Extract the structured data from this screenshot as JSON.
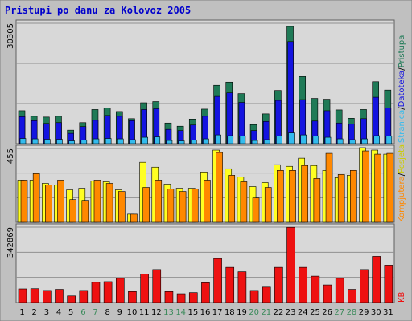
{
  "title": "Pristupi po danu za Kolovoz 2005",
  "colors": {
    "background": "#c0c0c0",
    "plot_bg": "#d8d8d8",
    "title": "#0000cc",
    "pristupa": "#1f7a57",
    "datoteka": "#1414e0",
    "stranica": "#33bbee",
    "kompjutera": "#ffff22",
    "posjeta": "#ff8800",
    "kb": "#ee1111",
    "weekend_tick": "#3a8a5a"
  },
  "right_labels": {
    "pristupa": "Pristupa",
    "datoteka": "Datoteka",
    "stranica": "Stranica",
    "kompjutera": "Kompjutera",
    "posjeta": "Posjeta",
    "kb": "KB",
    "sep": "/"
  },
  "chart_data": {
    "type": "bar",
    "categories": [
      "1",
      "2",
      "3",
      "4",
      "5",
      "6",
      "7",
      "8",
      "9",
      "10",
      "11",
      "12",
      "13",
      "14",
      "15",
      "16",
      "17",
      "18",
      "19",
      "20",
      "21",
      "22",
      "23",
      "24",
      "25",
      "26",
      "27",
      "28",
      "29",
      "30",
      "31"
    ],
    "weekend_days": [
      "6",
      "7",
      "13",
      "14",
      "20",
      "21",
      "27",
      "28"
    ],
    "panels": [
      {
        "ylabel": "30305",
        "ymax": 30305,
        "series": [
          {
            "name": "Pristupa",
            "values": [
              8300,
              6900,
              6700,
              6900,
              3400,
              5300,
              8600,
              9000,
              8100,
              6300,
              10300,
              10600,
              5200,
              4400,
              6200,
              8700,
              14700,
              15500,
              12600,
              4800,
              7500,
              13400,
              29500,
              16900,
              11400,
              11200,
              8500,
              6400,
              8600,
              15600,
              13500
            ]
          },
          {
            "name": "Datoteka",
            "values": [
              6800,
              5800,
              5100,
              5300,
              2600,
              4300,
              5900,
              7100,
              6900,
              5800,
              8600,
              8800,
              3600,
              3300,
              4700,
              6900,
              11900,
              12800,
              10400,
              3300,
              5600,
              10900,
              25700,
              11100,
              5700,
              8300,
              5200,
              4900,
              6300,
              11700,
              9000
            ]
          },
          {
            "name": "Stranica",
            "values": [
              1300,
              1200,
              1100,
              1100,
              700,
              900,
              1200,
              1300,
              1200,
              1000,
              1600,
              1700,
              800,
              700,
              900,
              1200,
              2200,
              2000,
              1900,
              800,
              1000,
              1900,
              2700,
              2200,
              1900,
              1600,
              1200,
              1000,
              1200,
              2000,
              1900
            ]
          }
        ]
      },
      {
        "ylabel": "455",
        "ymax": 455,
        "series": [
          {
            "name": "Kompjutera",
            "values": [
              260,
              260,
              240,
              230,
              200,
              210,
              255,
              250,
              200,
              50,
              370,
              340,
              235,
              210,
              210,
              310,
              445,
              330,
              280,
              220,
              245,
              355,
              345,
              395,
              350,
              320,
              275,
              290,
              460,
              445,
              420
            ]
          },
          {
            "name": "Posjeta",
            "values": [
              260,
              300,
              230,
              260,
              140,
              135,
              260,
              240,
              190,
              50,
              215,
              260,
              205,
              190,
              205,
              260,
              430,
              290,
              250,
              150,
              215,
              320,
              320,
              350,
              270,
              425,
              295,
              320,
              440,
              420,
              425
            ]
          }
        ]
      },
      {
        "ylabel": "342869",
        "ymax": 342869,
        "series": [
          {
            "name": "KB",
            "values": [
              62000,
              63000,
              55000,
              60000,
              30000,
              55000,
              92000,
              95000,
              110000,
              50000,
              130000,
              150000,
              50000,
              40000,
              45000,
              90000,
              200000,
              160000,
              140000,
              55000,
              70000,
              160000,
              342000,
              160000,
              120000,
              80000,
              110000,
              60000,
              150000,
              210000,
              170000
            ]
          }
        ]
      }
    ]
  }
}
